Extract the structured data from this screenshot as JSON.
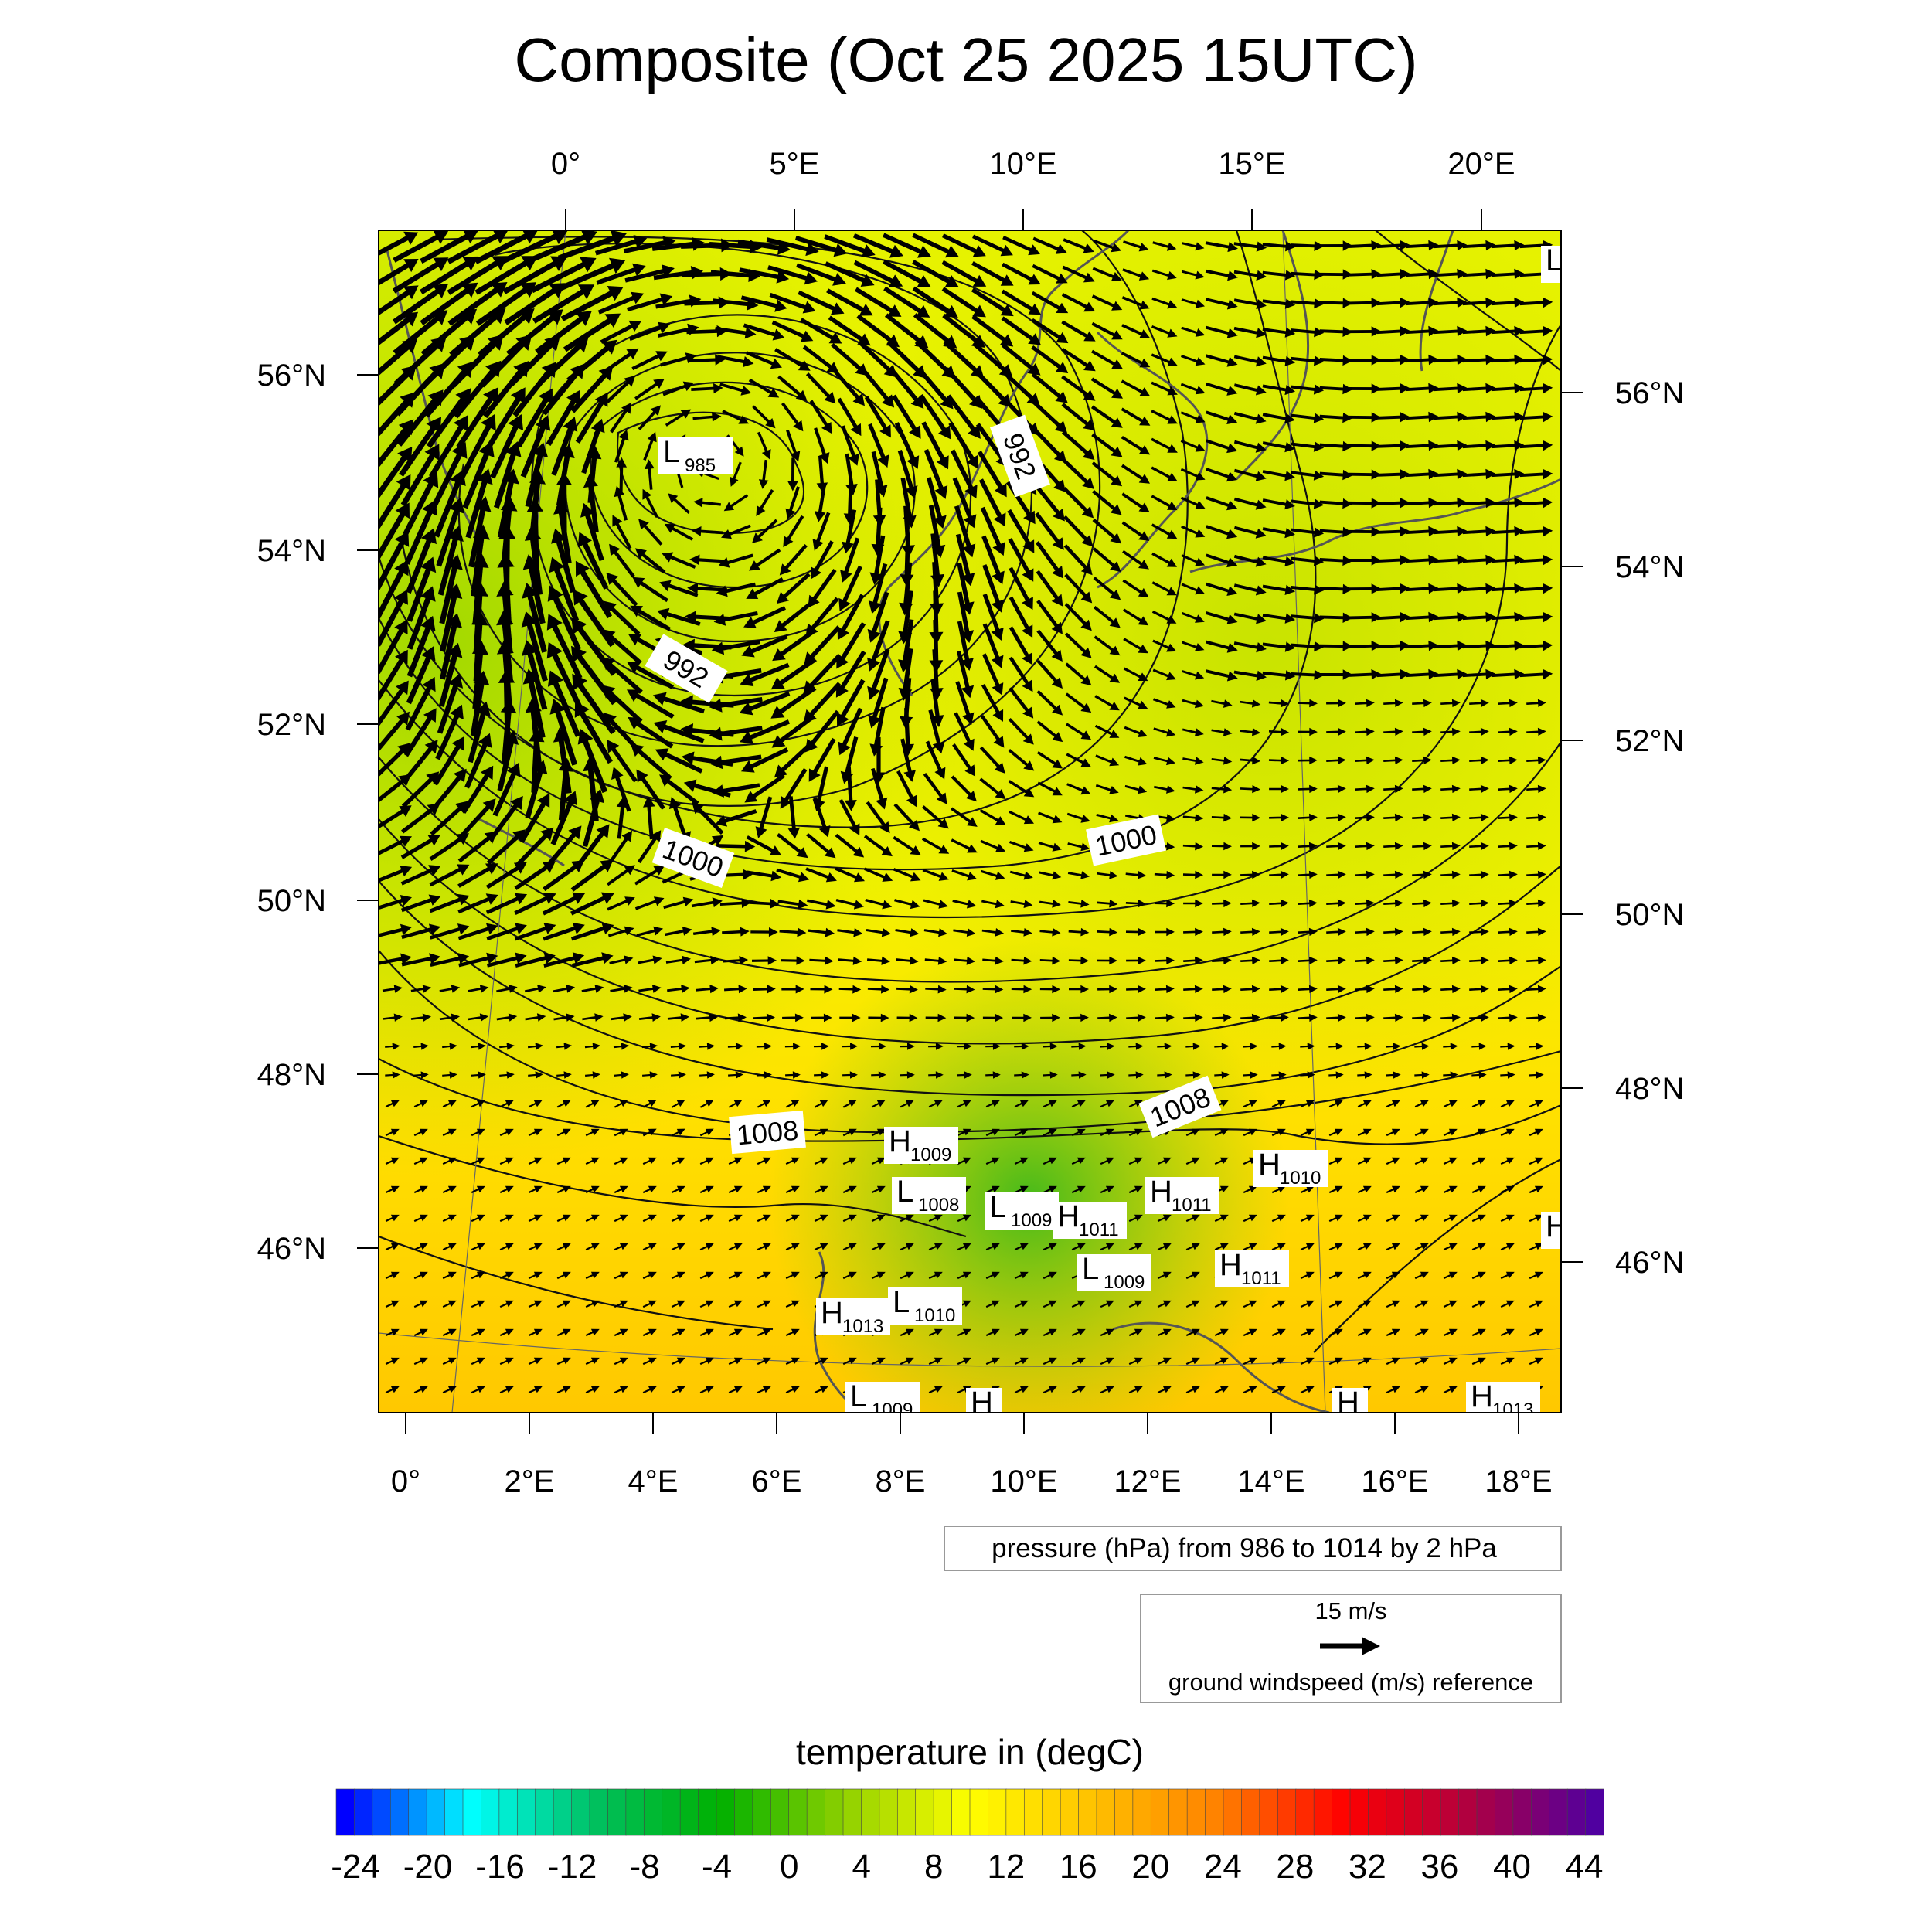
{
  "title": "Composite (Oct 25 2025 15UTC)",
  "top_lon_labels": [
    "0°",
    "5°E",
    "10°E",
    "15°E",
    "20°E"
  ],
  "bottom_lon_labels": [
    "0°",
    "2°E",
    "4°E",
    "6°E",
    "8°E",
    "10°E",
    "12°E",
    "14°E",
    "16°E",
    "18°E"
  ],
  "left_lat_labels": [
    "56°N",
    "54°N",
    "52°N",
    "50°N",
    "48°N",
    "46°N"
  ],
  "right_lat_labels": [
    "56°N",
    "54°N",
    "52°N",
    "50°N",
    "48°N",
    "46°N"
  ],
  "isobar_labels": [
    "992",
    "992",
    "1000",
    "1000",
    "1008",
    "1008"
  ],
  "pressure_centers": [
    {
      "type": "L",
      "value": "985"
    },
    {
      "type": "H",
      "value": "1009"
    },
    {
      "type": "L",
      "value": "1008"
    },
    {
      "type": "L",
      "value": "1009"
    },
    {
      "type": "H",
      "value": "1011"
    },
    {
      "type": "H",
      "value": "1011"
    },
    {
      "type": "H",
      "value": "1010"
    },
    {
      "type": "L",
      "value": "1009"
    },
    {
      "type": "H",
      "value": "1011"
    },
    {
      "type": "H",
      "value": "1013"
    },
    {
      "type": "L",
      "value": "1010"
    },
    {
      "type": "L",
      "value": "1009"
    },
    {
      "type": "H",
      "value": "1013"
    },
    {
      "type": "H",
      "value": ""
    },
    {
      "type": "H",
      "value": ""
    },
    {
      "type": "H",
      "value": ""
    },
    {
      "type": "L",
      "value": ""
    }
  ],
  "pressure_legend": "pressure (hPa) from 986 to 1014 by 2 hPa",
  "wind_reference": {
    "speed_label": "15 m/s",
    "caption": "ground windspeed (m/s) reference"
  },
  "colorbar": {
    "title": "temperature in (degC)",
    "tick_labels": [
      "-24",
      "-20",
      "-16",
      "-12",
      "-8",
      "-4",
      "0",
      "4",
      "8",
      "12",
      "16",
      "20",
      "24",
      "28",
      "32",
      "36",
      "40",
      "44"
    ],
    "colors": [
      "#0000ff",
      "#00ffff",
      "#00c060",
      "#00b000",
      "#90d000",
      "#ffff00",
      "#ffc000",
      "#ff8000",
      "#ff0000",
      "#b00040",
      "#5000a0"
    ]
  }
}
